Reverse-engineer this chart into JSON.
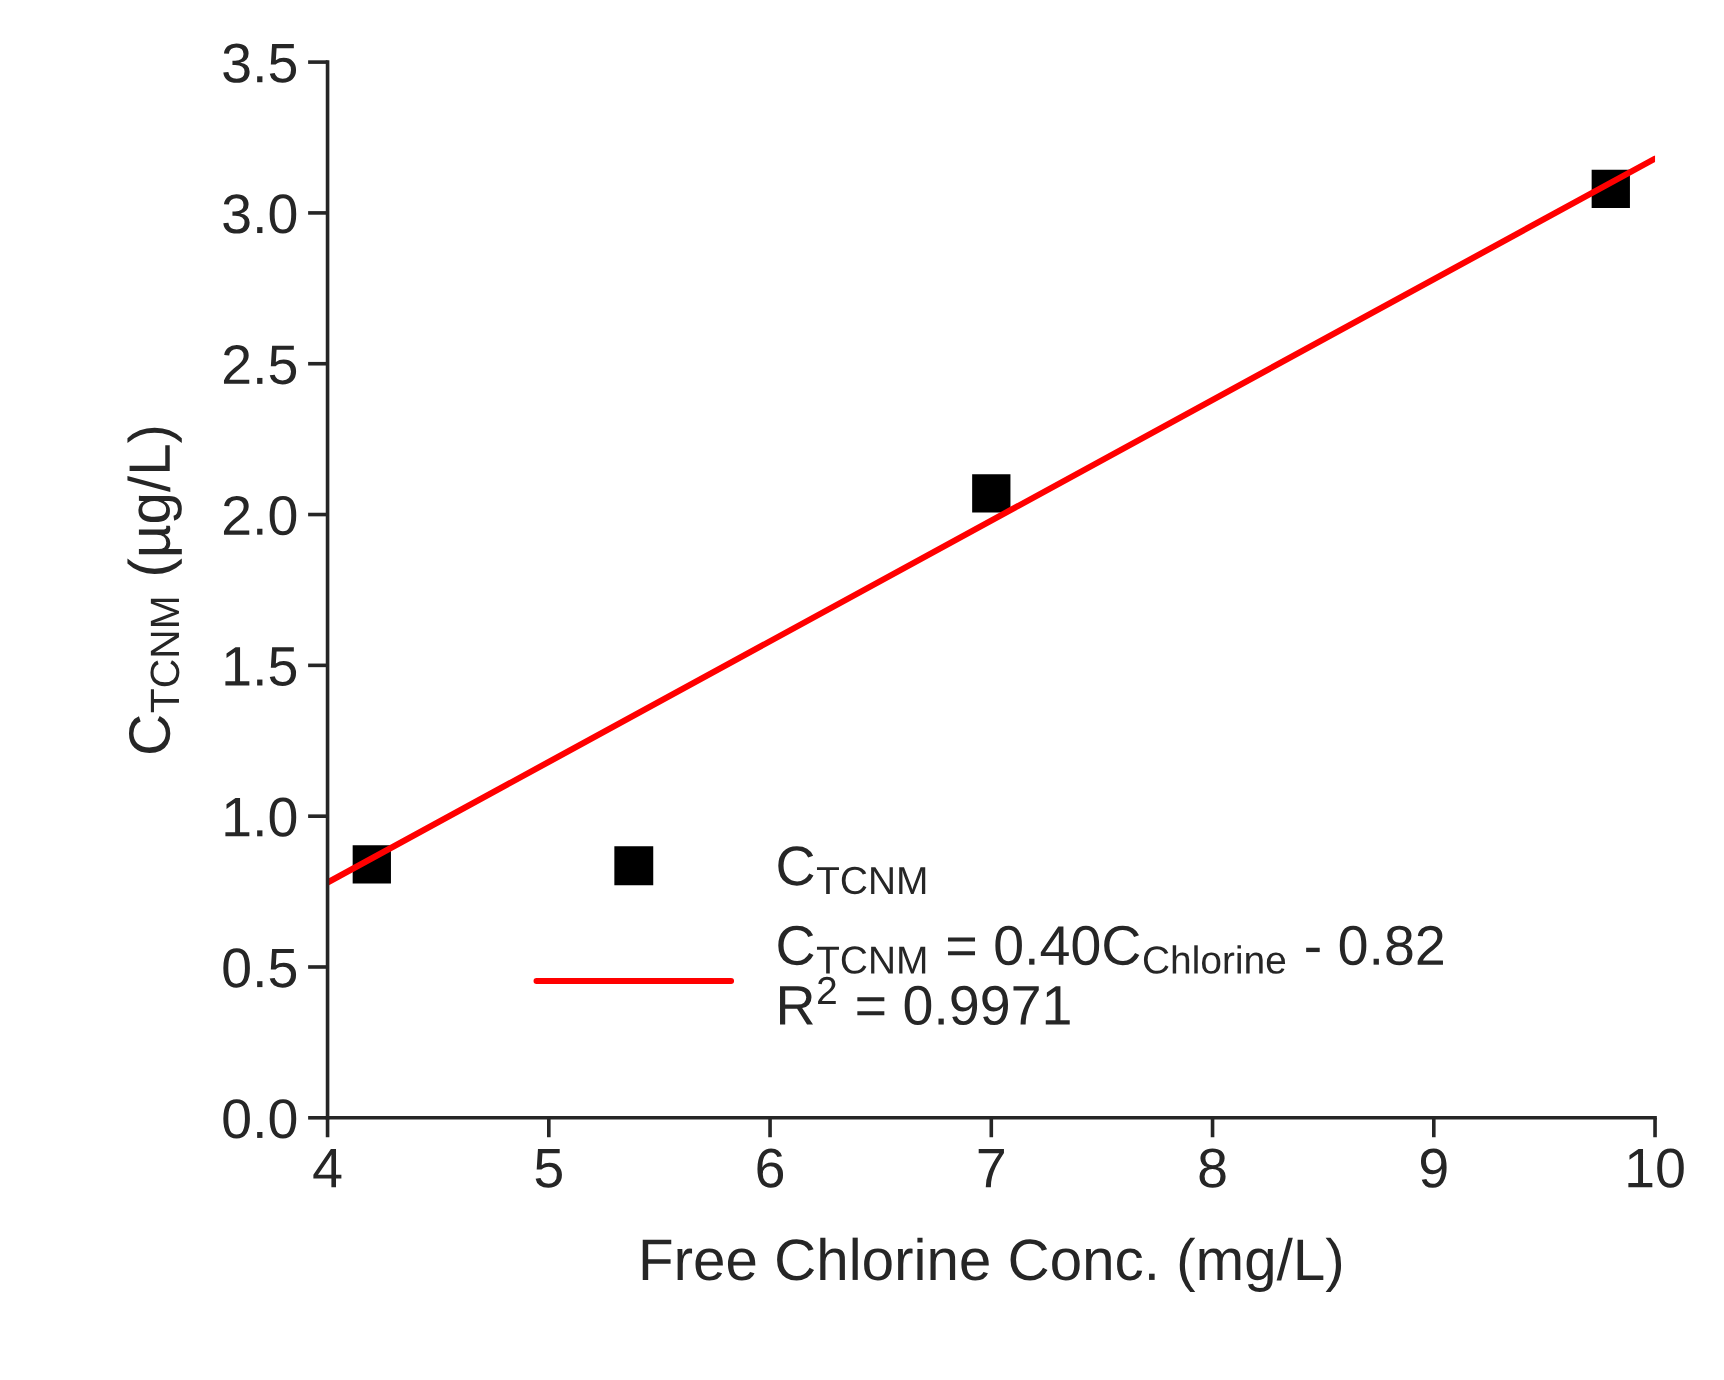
{
  "chart_data": {
    "type": "scatter",
    "xlabel": "Free Chlorine Conc. (mg/L)",
    "ylabel": "C$_{TCNM}$ (µg/L)",
    "series": [
      {
        "name": "C$_{TCNM}$",
        "color": "#000000",
        "marker": "square",
        "x": [
          4.2,
          7.0,
          9.8
        ],
        "values": [
          0.84,
          2.07,
          3.08
        ]
      },
      {
        "name": "C$_{TCNM}$ = 0.40C$_{Chlorine}$ - 0.82\nR$^{2}$ = 0.9971",
        "type": "line",
        "color": "#ff0000",
        "line_style": "solid",
        "marker": "none",
        "x": [
          4,
          10
        ],
        "values": [
          0.78,
          3.18
        ]
      }
    ],
    "xlim": [
      4,
      10
    ],
    "xticks": [
      4,
      5,
      6,
      7,
      8,
      9,
      10
    ],
    "ylim": [
      0,
      3.5
    ],
    "yticks": [
      {
        "value": 0,
        "label": "0.0"
      },
      {
        "value": 0.5,
        "label": "0.5"
      },
      {
        "value": 1,
        "label": "1.0"
      },
      {
        "value": 1.5,
        "label": "1.5"
      },
      {
        "value": 2,
        "label": "2.0"
      },
      {
        "value": 2.5,
        "label": "2.5"
      },
      {
        "value": 3,
        "label": "3.0"
      },
      {
        "value": 3.5,
        "label": "3.5"
      }
    ],
    "grid": false,
    "legend": "bottom"
  }
}
